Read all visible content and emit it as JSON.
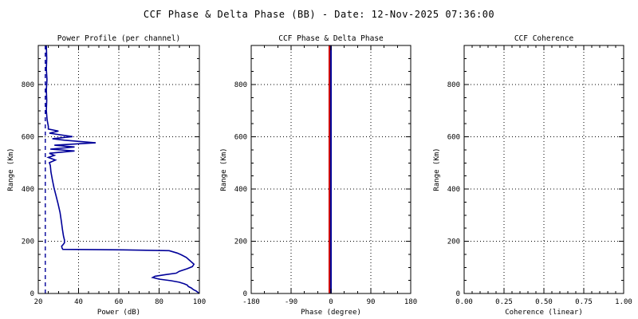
{
  "main_title": "CCF Phase & Delta Phase (BB) - Date: 12-Nov-2025 07:36:00",
  "colors": {
    "background": "#ffffff",
    "axis": "#000000",
    "grid_dots": "#000000",
    "data_blue": "#000099",
    "data_red": "#cc0000"
  },
  "chart_data": [
    {
      "type": "line",
      "title": "Power Profile (per channel)",
      "xlabel": "Power (dB)",
      "ylabel": "Range (Km)",
      "xlim": [
        20,
        100
      ],
      "ylim": [
        0,
        950
      ],
      "xticks": [
        20,
        40,
        60,
        80,
        100
      ],
      "xtick_labels": [
        "20",
        "40",
        "60",
        "80",
        "100"
      ],
      "yticks": [
        0,
        200,
        400,
        600,
        800
      ],
      "ytick_labels": [
        "0",
        "200",
        "400",
        "600",
        "800"
      ],
      "x_minor_per_interval": 3,
      "y_minor_per_interval": 3,
      "grid": "dotted",
      "legend": "none",
      "series": [
        {
          "name": "power profile",
          "color": "#000099",
          "style": "solid",
          "width": 1.6,
          "points_format": "[power_dB, range_km]",
          "points": [
            [
              24,
              950
            ],
            [
              24.2,
              900
            ],
            [
              24,
              860
            ],
            [
              24.3,
              820
            ],
            [
              24,
              780
            ],
            [
              24.2,
              740
            ],
            [
              24,
              700
            ],
            [
              24.4,
              665
            ],
            [
              25,
              640
            ],
            [
              25,
              630
            ],
            [
              30,
              622
            ],
            [
              25.5,
              614
            ],
            [
              37,
              601
            ],
            [
              27,
              593
            ],
            [
              33,
              587
            ],
            [
              48.5,
              577
            ],
            [
              28,
              568
            ],
            [
              38,
              561
            ],
            [
              26,
              553
            ],
            [
              38,
              546
            ],
            [
              25.5,
              537
            ],
            [
              28,
              529
            ],
            [
              25,
              521
            ],
            [
              28.5,
              511
            ],
            [
              25.5,
              501
            ],
            [
              26,
              490
            ],
            [
              26.3,
              465
            ],
            [
              27,
              435
            ],
            [
              27.8,
              405
            ],
            [
              28.8,
              375
            ],
            [
              29.8,
              345
            ],
            [
              30.8,
              310
            ],
            [
              31.5,
              275
            ],
            [
              32,
              245
            ],
            [
              32.5,
              220
            ],
            [
              33,
              205
            ],
            [
              33,
              194
            ],
            [
              32.2,
              186
            ],
            [
              31.6,
              181
            ],
            [
              31.8,
              174
            ],
            [
              32.2,
              169
            ],
            [
              62,
              167
            ],
            [
              85,
              164
            ],
            [
              89,
              155
            ],
            [
              91,
              148
            ],
            [
              93.5,
              138
            ],
            [
              95,
              128
            ],
            [
              97.3,
              112
            ],
            [
              96.5,
              103
            ],
            [
              94,
              95
            ],
            [
              90,
              85
            ],
            [
              88.5,
              78
            ],
            [
              83,
              72
            ],
            [
              78,
              66
            ],
            [
              76.8,
              61
            ],
            [
              80,
              55
            ],
            [
              86,
              49
            ],
            [
              90,
              43
            ],
            [
              92.5,
              37
            ],
            [
              94,
              32
            ],
            [
              94.5,
              27
            ],
            [
              96,
              21
            ],
            [
              97,
              15
            ],
            [
              98.5,
              9
            ],
            [
              99.5,
              3
            ],
            [
              100,
              0
            ]
          ]
        },
        {
          "name": "noise level",
          "color": "#000099",
          "style": "dashed",
          "width": 1.4,
          "points_format": "[power_dB, range_km]",
          "points": [
            [
              23.5,
              950
            ],
            [
              23.5,
              0
            ]
          ]
        }
      ]
    },
    {
      "type": "line",
      "title": "CCF Phase & Delta Phase",
      "xlabel": "Phase (degree)",
      "ylabel": "Range (Km)",
      "xlim": [
        -180,
        180
      ],
      "ylim": [
        0,
        950
      ],
      "xticks": [
        -180,
        -90,
        0,
        90,
        180
      ],
      "xtick_labels": [
        "-180",
        "-90",
        "0",
        "90",
        "180"
      ],
      "yticks": [
        0,
        200,
        400,
        600,
        800
      ],
      "ytick_labels": [
        "0",
        "200",
        "400",
        "600",
        "800"
      ],
      "x_minor_per_interval": 2,
      "y_minor_per_interval": 3,
      "grid": "dotted",
      "legend": "none",
      "series": [
        {
          "name": "delta phase",
          "color": "#cc0000",
          "style": "solid",
          "width": 2,
          "render_dx": -2,
          "points_format": "[phase_deg, range_km]",
          "points": [
            [
              0,
              950
            ],
            [
              0,
              0
            ]
          ]
        },
        {
          "name": "ccf phase",
          "color": "#000099",
          "style": "solid",
          "width": 2,
          "points_format": "[phase_deg, range_km]",
          "points": [
            [
              0,
              950
            ],
            [
              0,
              0
            ]
          ]
        }
      ]
    },
    {
      "type": "line",
      "title": "CCF Coherence",
      "xlabel": "Coherence (linear)",
      "ylabel": "Range (Km)",
      "xlim": [
        0,
        1
      ],
      "ylim": [
        0,
        950
      ],
      "xticks": [
        0,
        0.25,
        0.5,
        0.75,
        1
      ],
      "xtick_labels": [
        "0.00",
        "0.25",
        "0.50",
        "0.75",
        "1.00"
      ],
      "yticks": [
        0,
        200,
        400,
        600,
        800
      ],
      "ytick_labels": [
        "0",
        "200",
        "400",
        "600",
        "800"
      ],
      "x_minor_per_interval": 4,
      "y_minor_per_interval": 3,
      "grid": "dotted",
      "legend": "none",
      "series": []
    }
  ]
}
